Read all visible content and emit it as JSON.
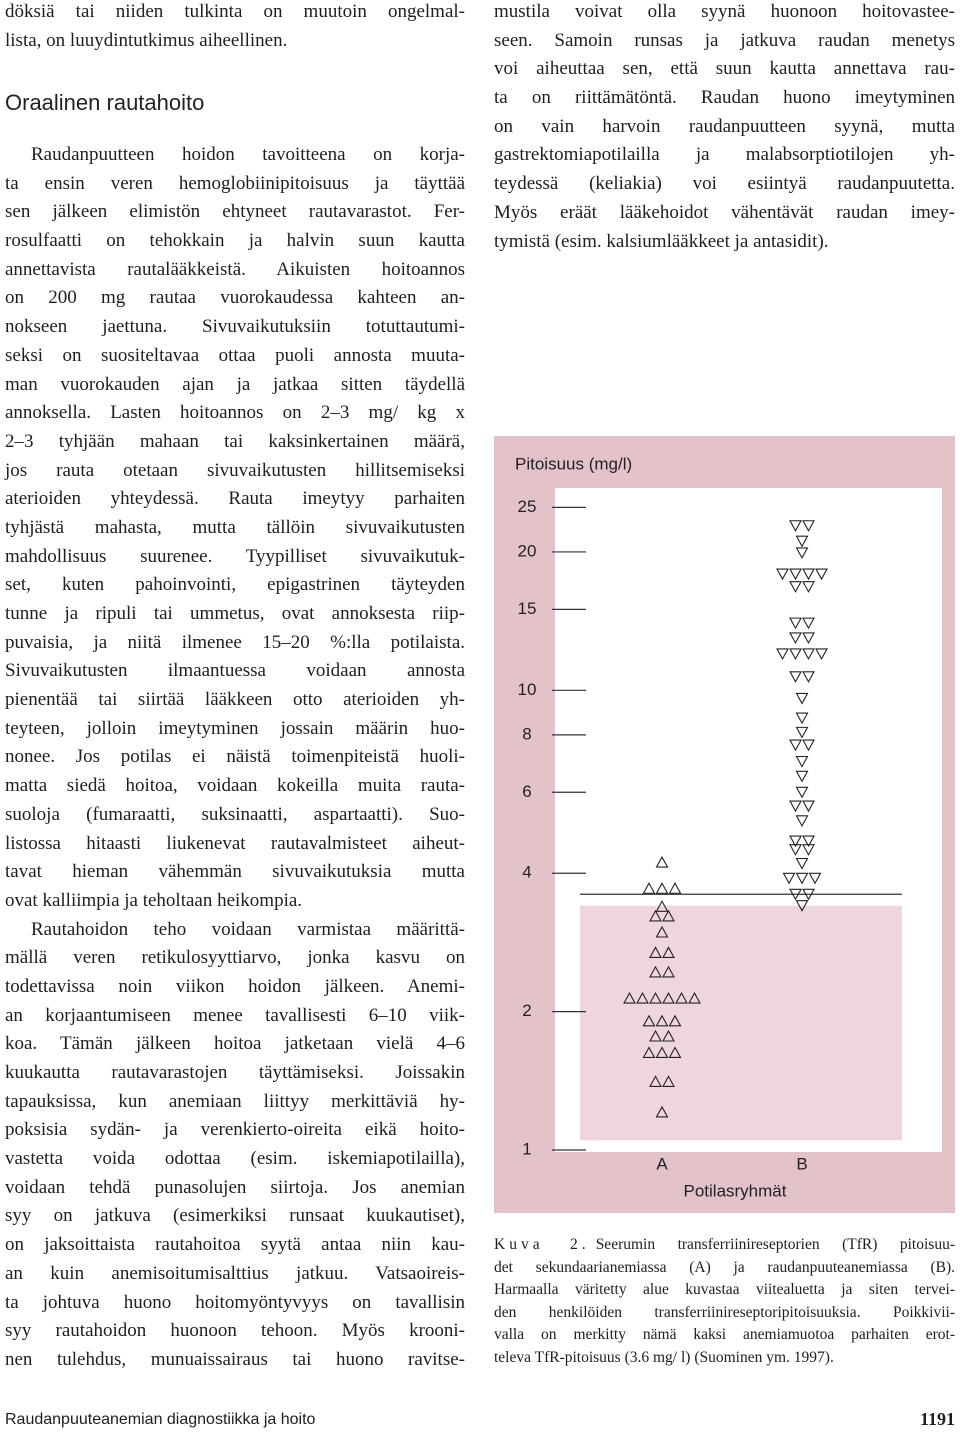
{
  "intro_lines": [
    "döksiä tai niiden tulkinta on muutoin ongelmal-",
    "lista, on luuydintutkimus aiheellinen."
  ],
  "heading": "Oraalinen rautahoito",
  "paragraphs": [
    [
      "Raudanpuutteen hoidon tavoitteena on korja-",
      "ta ensin veren hemoglobiinipitoisuus ja täyttää",
      "sen jälkeen elimistön ehtyneet rautavarastot. Fer-",
      "rosulfaatti on tehokkain ja halvin suun kautta",
      "annettavista rautalääkkeistä. Aikuisten hoitoannos",
      "on 200 mg rautaa vuorokaudessa kahteen an-",
      "nokseen jaettuna. Sivuvaikutuksiin totuttautumi-",
      "seksi on suositeltavaa ottaa puoli annosta muuta-",
      "man vuorokauden ajan ja jatkaa sitten täydellä",
      "annoksella. Lasten hoitoannos on 2–3 mg/ kg x",
      "2–3 tyhjään mahaan tai kaksinkertainen määrä,",
      "jos rauta otetaan sivuvaikutusten hillitsemiseksi",
      "aterioiden yhteydessä. Rauta imeytyy parhaiten",
      "tyhjästä mahasta, mutta tällöin sivuvaikutusten",
      "mahdollisuus suurenee. Tyypilliset sivuvaikutuk-",
      "set, kuten pahoinvointi, epigastrinen täyteyden",
      "tunne ja ripuli tai ummetus, ovat annoksesta riip-",
      "puvaisia, ja niitä ilmenee 15–20 %:lla potilaista.",
      "Sivuvaikutusten ilmaantuessa voidaan annosta",
      "pienentää tai siirtää lääkkeen otto aterioiden yh-",
      "teyteen, jolloin imeytyminen jossain määrin huo-",
      "nonee. Jos potilas ei näistä toimenpiteistä huoli-",
      "matta siedä hoitoa, voidaan kokeilla muita rauta-",
      "suoloja (fumaraatti, suksinaatti, aspartaatti). Suo-",
      "listossa hitaasti liukenevat rautavalmisteet aiheut-",
      "tavat hieman vähemmän sivuvaikutuksia mutta",
      "ovat kalliimpia ja teholtaan heikompia."
    ],
    [
      "Rautahoidon teho voidaan varmistaa määrittä-",
      "mällä veren retikulosyyttiarvo, jonka kasvu on",
      "todettavissa noin viikon hoidon jälkeen. Anemi-",
      "an korjaantumiseen menee tavallisesti 6–10 viik-",
      "koa. Tämän jälkeen hoitoa jatketaan vielä 4–6",
      "kuukautta rautavarastojen täyttämiseksi. Joissakin",
      "tapauksissa, kun anemiaan liittyy merkittäviä hy-",
      "poksisia sydän- ja verenkierto-oireita eikä hoito-",
      "vastetta voida odottaa (esim. iskemiapotilailla),",
      "voidaan tehdä punasolujen siirtoja. Jos anemian",
      "syy on jatkuva (esimerkiksi runsaat kuukautiset),",
      "on jaksoittaista rautahoitoa syytä antaa niin kau-",
      "an kuin anemisoitumisalttius jatkuu. Vatsaoireis-",
      "ta johtuva huono hoitomyöntyvyys on tavallisin",
      "syy rautahoidon huonoon tehoon. Myös krooni-",
      "nen tulehdus, munuaissairaus tai huono ravitse-"
    ]
  ],
  "right_column_lines": [
    "mustila voivat olla syynä huonoon hoitovastee-",
    "seen. Samoin runsas ja jatkuva raudan menetys",
    "voi aiheuttaa sen, että suun kautta annettava rau-",
    "ta on riittämätöntä. Raudan huono imeytyminen",
    "on vain harvoin raudanpuutteen syynä, mutta",
    "gastrektomiapotilailla ja malabsorptiotilojen yh-",
    "teydessä (keliakia) voi esiintyä raudanpuutetta.",
    "Myös eräät lääkehoidot vähentävät raudan imey-",
    "tymistä (esim. kalsiumlääkkeet ja antasidit)."
  ],
  "chart_data": {
    "type": "scatter",
    "y_label": "Pitoisuus (mg/l)",
    "x_label": "Potilasryhmät",
    "categories": [
      "A",
      "B"
    ],
    "log_y": true,
    "ylim": [
      1,
      27
    ],
    "yticks": [
      1,
      2,
      4,
      6,
      8,
      10,
      15,
      20,
      25
    ],
    "reference_range": [
      1.05,
      3.4
    ],
    "cutoff": 3.6,
    "series": [
      {
        "marker": "triangle-up",
        "values": [
          4.23,
          3.71,
          3.71,
          3.71,
          3.39,
          3.23,
          3.23,
          2.98,
          2.69,
          2.69,
          2.44,
          2.44,
          2.14,
          2.14,
          2.14,
          2.14,
          2.14,
          2.14,
          1.91,
          1.91,
          1.91,
          1.77,
          1.77,
          1.63,
          1.63,
          1.63,
          1.41,
          1.41,
          1.21
        ]
      },
      {
        "marker": "triangle-down",
        "values": [
          22.8,
          22.8,
          21.1,
          19.9,
          17.9,
          17.9,
          17.9,
          17.9,
          16.8,
          16.8,
          14.0,
          14.0,
          13.0,
          13.0,
          12.0,
          12.0,
          12.0,
          12.0,
          10.7,
          10.7,
          9.6,
          8.7,
          8.1,
          7.6,
          7.6,
          7.0,
          6.5,
          6.0,
          5.6,
          5.6,
          5.2,
          4.7,
          4.7,
          4.5,
          4.5,
          4.2,
          3.9,
          3.9,
          3.9,
          3.6,
          3.6,
          3.4
        ]
      }
    ]
  },
  "caption": {
    "label": "Kuva 2.",
    "lines": [
      "Seerumin transferriinireseptorien (TfR) pitoisuu-",
      "det sekundaarianemiassa (A) ja raudanpuuteanemiassa (B).",
      "Harmaalla väritetty alue kuvastaa viitealuetta ja siten tervei-",
      "den henkilöiden transferriinireseptoripitoisuuksia. Poikkivii-",
      "valla on merkitty nämä kaksi anemiamuotoa parhaiten erot-",
      "televa TfR-pitoisuus (3.6 mg/ l) (Suominen ym. 1997)."
    ]
  },
  "footer": {
    "running_title": "Raudanpuuteanemian diagnostiikka ja hoito",
    "page_number": 1191
  }
}
